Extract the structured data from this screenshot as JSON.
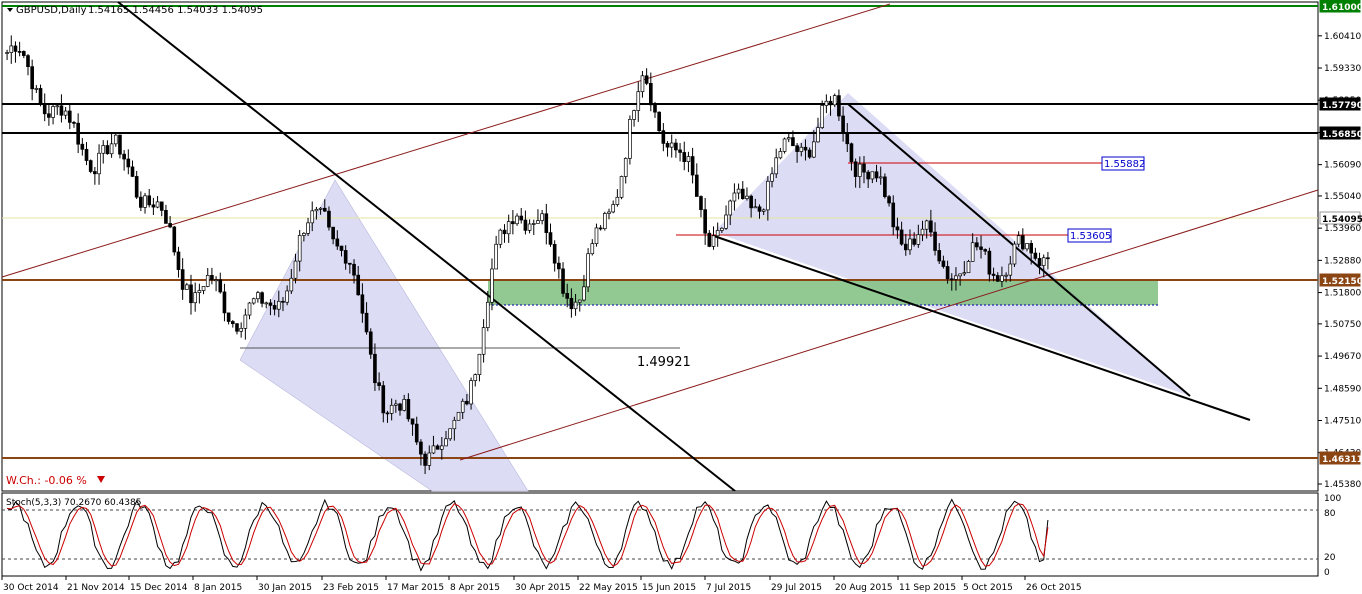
{
  "header": {
    "symbol": "GBPUSD,Daily",
    "ohlc": "1.54165 1.54456 1.54033 1.54095"
  },
  "indicator": {
    "label": "Stoch(5,3,3) 70.2670 60.4385",
    "levels": [
      100,
      80,
      20,
      0
    ]
  },
  "weekly_change": "W.Ch.: -0.06 %",
  "annotations": {
    "level_1_49921": "1.49921",
    "level_1_55882": "1.55882",
    "level_1_53605": "1.53605"
  },
  "price_tags": [
    "1.61000",
    "1.57790",
    "1.56850",
    "1.54095",
    "1.52150",
    "1.46311"
  ],
  "colors": {
    "bull": "#ffffff",
    "bear": "#000000",
    "support_zone": "#7fbf7f",
    "triangle_fill": "#dcdcf5",
    "resistance_line": "#000000",
    "channel_line": "#8b1a1a",
    "brown_level": "#8b4513",
    "green_top": "#008000",
    "stoch_main": "#000000",
    "stoch_signal": "#cc0000",
    "label_box": "#0000cc"
  },
  "chart_data": {
    "type": "candlestick",
    "title": "GBPUSD,Daily",
    "ylim": [
      1.4538,
      1.6141
    ],
    "y_ticks": [
      "1.60410",
      "1.59330",
      "1.58250",
      "1.57170",
      "1.56090",
      "1.55040",
      "1.53960",
      "1.52880",
      "1.51800",
      "1.50750",
      "1.49670",
      "1.48590",
      "1.47510",
      "1.46430",
      "1.45380"
    ],
    "x_tick_labels": [
      "30 Oct 2014",
      "21 Nov 2014",
      "15 Dec 2014",
      "8 Jan 2015",
      "30 Jan 2015",
      "23 Feb 2015",
      "17 Mar 2015",
      "8 Apr 2015",
      "30 Apr 2015",
      "22 May 2015",
      "15 Jun 2015",
      "7 Jul 2015",
      "29 Jul 2015",
      "20 Aug 2015",
      "11 Sep 2015",
      "5 Oct 2015",
      "26 Oct 2015"
    ],
    "horizontal_levels": [
      1.61,
      1.5779,
      1.5685,
      1.5215,
      1.46311,
      1.49921,
      1.55882,
      1.53605
    ],
    "close_path": [
      {
        "date": "30 Oct 2014",
        "close": 1.6
      },
      {
        "date": "21 Nov 2014",
        "close": 1.569
      },
      {
        "date": "15 Dec 2014",
        "close": 1.565
      },
      {
        "date": "8 Jan 2015",
        "close": 1.514
      },
      {
        "date": "30 Jan 2015",
        "close": 1.512
      },
      {
        "date": "23 Feb 2015",
        "close": 1.547
      },
      {
        "date": "17 Mar 2015",
        "close": 1.478
      },
      {
        "date": "8 Apr 2015",
        "close": 1.468
      },
      {
        "date": "30 Apr 2015",
        "close": 1.547
      },
      {
        "date": "22 May 2015",
        "close": 1.52
      },
      {
        "date": "15 Jun 2015",
        "close": 1.585
      },
      {
        "date": "7 Jul 2015",
        "close": 1.54
      },
      {
        "date": "29 Jul 2015",
        "close": 1.558
      },
      {
        "date": "20 Aug 2015",
        "close": 1.575
      },
      {
        "date": "11 Sep 2015",
        "close": 1.544
      },
      {
        "date": "5 Oct 2015",
        "close": 1.522
      },
      {
        "date": "26 Oct 2015",
        "close": 1.532
      },
      {
        "date": "last",
        "close": 1.54095
      }
    ],
    "stoch_ylim": [
      0,
      100
    ]
  }
}
